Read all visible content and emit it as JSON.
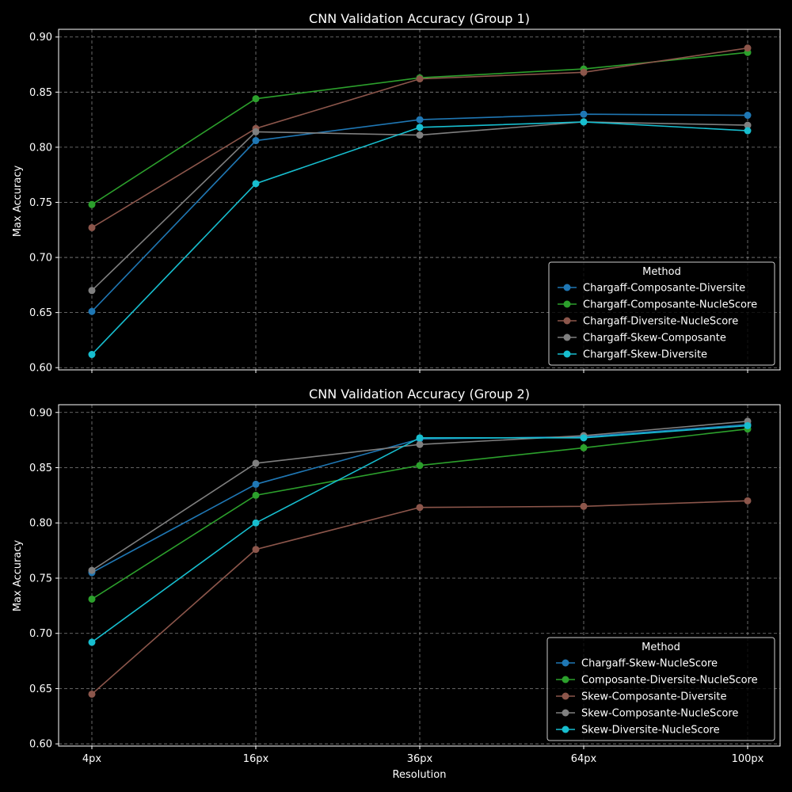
{
  "chart_data": [
    {
      "type": "line",
      "title": "CNN Validation Accuracy (Group 1)",
      "xlabel": "",
      "ylabel": "Max Accuracy",
      "categories": [
        "4px",
        "16px",
        "36px",
        "64px",
        "100px"
      ],
      "ylim": [
        0.598,
        0.907
      ],
      "yticks": [
        "0.60",
        "0.65",
        "0.70",
        "0.75",
        "0.80",
        "0.85",
        "0.90"
      ],
      "grid": true,
      "legend": {
        "title": "Method",
        "placement": "lower-right"
      },
      "series": [
        {
          "name": "Chargaff-Composante-Diversite",
          "color": "#1f77b4",
          "values": [
            0.651,
            0.806,
            0.825,
            0.83,
            0.829
          ]
        },
        {
          "name": "Chargaff-Composante-NucleScore",
          "color": "#2ca02c",
          "values": [
            0.748,
            0.844,
            0.863,
            0.871,
            0.886
          ]
        },
        {
          "name": "Chargaff-Diversite-NucleScore",
          "color": "#8c564b",
          "values": [
            0.727,
            0.817,
            0.862,
            0.868,
            0.89
          ]
        },
        {
          "name": "Chargaff-Skew-Composante",
          "color": "#7f7f7f",
          "values": [
            0.67,
            0.814,
            0.811,
            0.823,
            0.82
          ]
        },
        {
          "name": "Chargaff-Skew-Diversite",
          "color": "#17becf",
          "values": [
            0.612,
            0.767,
            0.818,
            0.823,
            0.815
          ]
        }
      ]
    },
    {
      "type": "line",
      "title": "CNN Validation Accuracy (Group 2)",
      "xlabel": "Resolution",
      "ylabel": "Max Accuracy",
      "categories": [
        "4px",
        "16px",
        "36px",
        "64px",
        "100px"
      ],
      "ylim": [
        0.598,
        0.907
      ],
      "yticks": [
        "0.60",
        "0.65",
        "0.70",
        "0.75",
        "0.80",
        "0.85",
        "0.90"
      ],
      "grid": true,
      "legend": {
        "title": "Method",
        "placement": "lower-right"
      },
      "series": [
        {
          "name": "Chargaff-Skew-NucleScore",
          "color": "#1f77b4",
          "values": [
            0.755,
            0.835,
            0.876,
            0.878,
            0.889
          ]
        },
        {
          "name": "Composante-Diversite-NucleScore",
          "color": "#2ca02c",
          "values": [
            0.731,
            0.825,
            0.852,
            0.868,
            0.885
          ]
        },
        {
          "name": "Skew-Composante-Diversite",
          "color": "#8c564b",
          "values": [
            0.645,
            0.776,
            0.814,
            0.815,
            0.82
          ]
        },
        {
          "name": "Skew-Composante-NucleScore",
          "color": "#7f7f7f",
          "values": [
            0.757,
            0.854,
            0.871,
            0.879,
            0.892
          ]
        },
        {
          "name": "Skew-Diversite-NucleScore",
          "color": "#17becf",
          "values": [
            0.692,
            0.8,
            0.877,
            0.877,
            0.888
          ]
        }
      ]
    }
  ]
}
